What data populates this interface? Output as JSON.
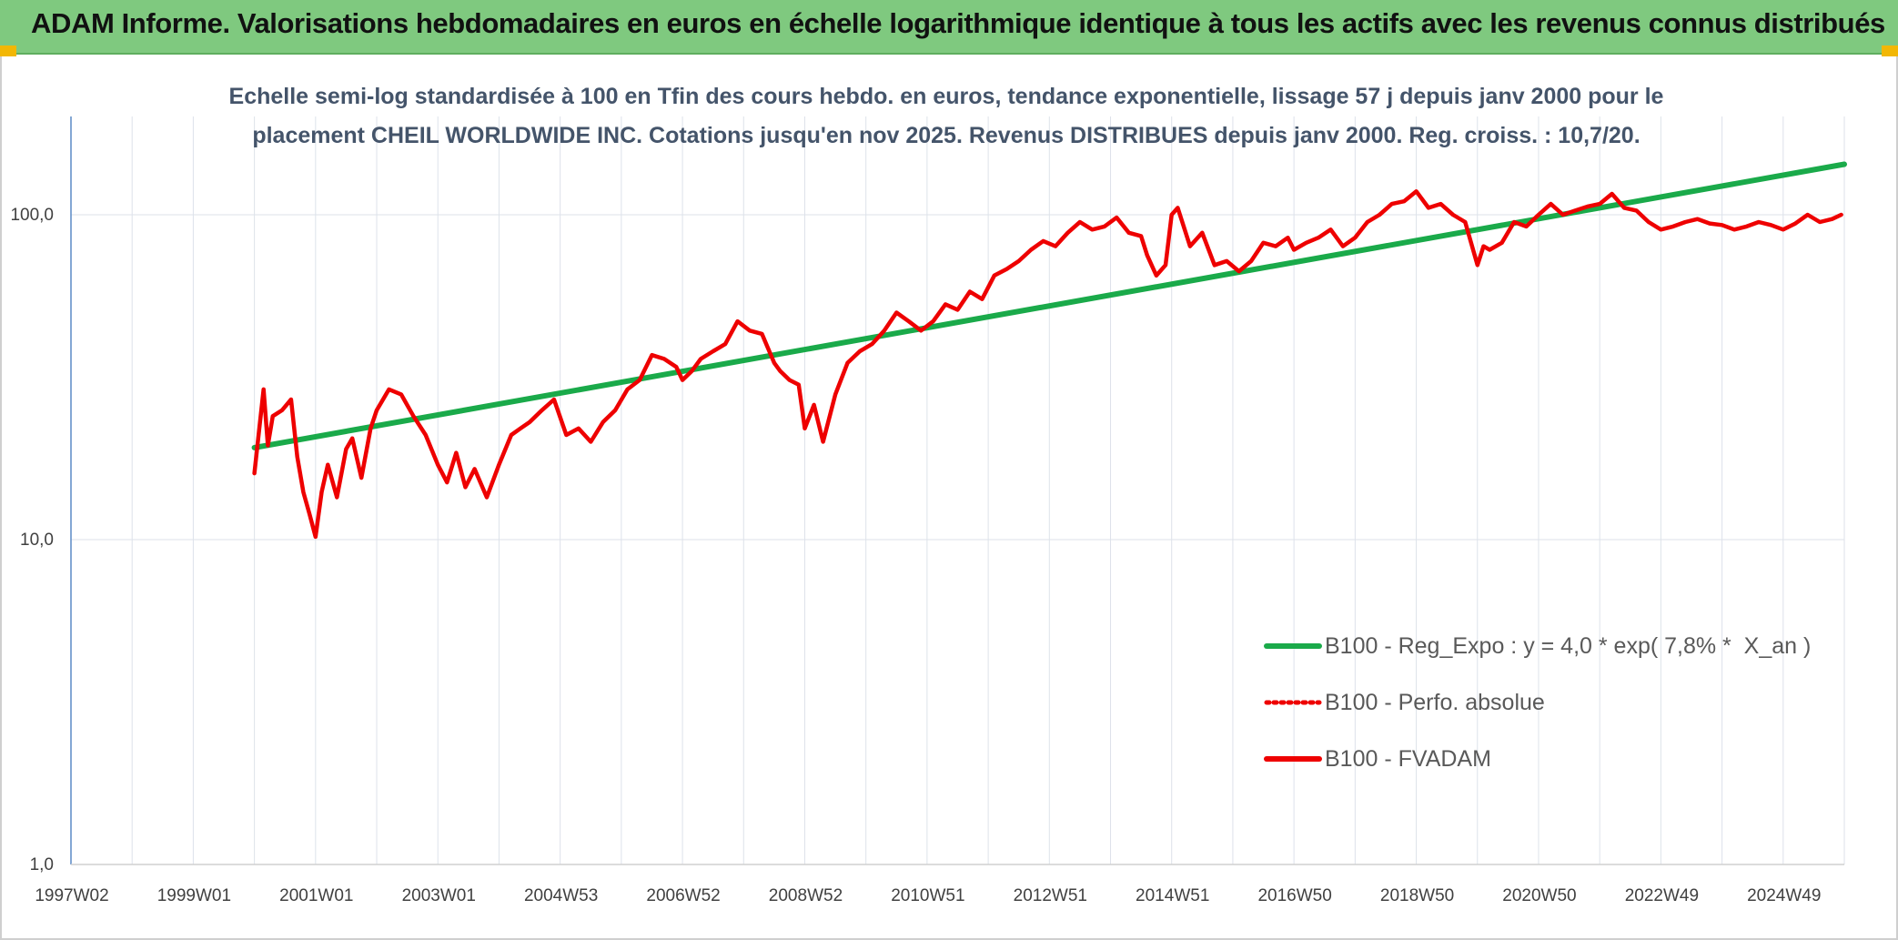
{
  "header": {
    "title": "ADAM Informe. Valorisations hebdomadaires en euros en échelle logarithmique identique à tous les actifs avec les revenus connus distribués"
  },
  "colors": {
    "header_bg": "#7fc97f",
    "regression": "#1aaa4a",
    "fvadam": "#ee0000",
    "corner": "#f2b705"
  },
  "chart_data": {
    "type": "line",
    "title_lines": [
      "Echelle semi-log standardisée à 100 en Tfin des cours hebdo. en euros, tendance exponentielle, lissage 57 j depuis janv 2000 pour le",
      "placement CHEIL WORLDWIDE INC. Cotations jusqu'en nov 2025. Revenus DISTRIBUES depuis janv 2000. Reg. croiss. : 10,7/20."
    ],
    "y_scale": "log",
    "ylim": [
      1,
      200
    ],
    "y_ticks": [
      {
        "value": 1,
        "label": "1,0"
      },
      {
        "value": 10,
        "label": "10,0"
      },
      {
        "value": 100,
        "label": "100,0"
      }
    ],
    "xlim": [
      1997.0,
      2026.0
    ],
    "x_ticks": [
      {
        "value": 1997.0,
        "label": "1997W02"
      },
      {
        "value": 1999.0,
        "label": "1999W01"
      },
      {
        "value": 2001.0,
        "label": "2001W01"
      },
      {
        "value": 2003.0,
        "label": "2003W01"
      },
      {
        "value": 2005.0,
        "label": "2004W53"
      },
      {
        "value": 2007.0,
        "label": "2006W52"
      },
      {
        "value": 2009.0,
        "label": "2008W52"
      },
      {
        "value": 2011.0,
        "label": "2010W51"
      },
      {
        "value": 2013.0,
        "label": "2012W51"
      },
      {
        "value": 2015.0,
        "label": "2014W51"
      },
      {
        "value": 2017.0,
        "label": "2016W50"
      },
      {
        "value": 2019.0,
        "label": "2018W50"
      },
      {
        "value": 2021.0,
        "label": "2020W50"
      },
      {
        "value": 2023.0,
        "label": "2022W49"
      },
      {
        "value": 2025.0,
        "label": "2024W49"
      }
    ],
    "grid": "vertical-yearly-and-horizontal-decades",
    "legend_position": "bottom-right",
    "series": [
      {
        "name": "B100 - Reg_Expo : y = 4,0 * exp( 7,8% *  X_an )",
        "style": "solid",
        "color": "#1aaa4a",
        "x": [
          2000.0,
          2026.0
        ],
        "y": [
          19.2,
          143.0
        ]
      },
      {
        "name": "B100 - Perfo. absolue",
        "style": "dotted",
        "color": "#ee0000",
        "x": [],
        "y": []
      },
      {
        "name": "B100 - FVADAM",
        "style": "solid",
        "color": "#ee0000",
        "x": [
          2000.0,
          2000.08,
          2000.15,
          2000.22,
          2000.3,
          2000.45,
          2000.6,
          2000.7,
          2000.8,
          2000.9,
          2001.0,
          2001.1,
          2001.2,
          2001.35,
          2001.5,
          2001.6,
          2001.75,
          2001.9,
          2002.0,
          2002.2,
          2002.4,
          2002.6,
          2002.8,
          2003.0,
          2003.15,
          2003.3,
          2003.45,
          2003.6,
          2003.8,
          2004.0,
          2004.2,
          2004.35,
          2004.5,
          2004.7,
          2004.9,
          2005.1,
          2005.3,
          2005.5,
          2005.7,
          2005.9,
          2006.1,
          2006.3,
          2006.5,
          2006.7,
          2006.9,
          2007.0,
          2007.15,
          2007.3,
          2007.5,
          2007.7,
          2007.9,
          2008.1,
          2008.3,
          2008.5,
          2008.6,
          2008.75,
          2008.9,
          2009.0,
          2009.15,
          2009.3,
          2009.5,
          2009.7,
          2009.9,
          2010.1,
          2010.3,
          2010.5,
          2010.7,
          2010.9,
          2011.1,
          2011.3,
          2011.5,
          2011.7,
          2011.9,
          2012.1,
          2012.3,
          2012.5,
          2012.7,
          2012.9,
          2013.1,
          2013.3,
          2013.5,
          2013.7,
          2013.9,
          2014.1,
          2014.3,
          2014.5,
          2014.6,
          2014.75,
          2014.9,
          2015.0,
          2015.1,
          2015.3,
          2015.5,
          2015.7,
          2015.9,
          2016.1,
          2016.3,
          2016.5,
          2016.7,
          2016.9,
          2017.0,
          2017.2,
          2017.4,
          2017.6,
          2017.8,
          2018.0,
          2018.2,
          2018.4,
          2018.6,
          2018.8,
          2019.0,
          2019.2,
          2019.4,
          2019.6,
          2019.8,
          2020.0,
          2020.1,
          2020.2,
          2020.4,
          2020.6,
          2020.8,
          2021.0,
          2021.2,
          2021.4,
          2021.6,
          2021.8,
          2022.0,
          2022.2,
          2022.4,
          2022.6,
          2022.8,
          2023.0,
          2023.2,
          2023.4,
          2023.6,
          2023.8,
          2024.0,
          2024.2,
          2024.4,
          2024.6,
          2024.8,
          2025.0,
          2025.2,
          2025.4,
          2025.6,
          2025.8,
          2025.95
        ],
        "y": [
          16.0,
          22.0,
          29.0,
          19.5,
          24.0,
          25.0,
          27.0,
          18.0,
          14.0,
          12.0,
          10.2,
          14.0,
          17.0,
          13.5,
          19.0,
          20.5,
          15.5,
          22.0,
          25.0,
          29.0,
          28.0,
          24.0,
          21.0,
          17.0,
          15.0,
          18.5,
          14.5,
          16.5,
          13.5,
          17.0,
          21.0,
          22.0,
          23.0,
          25.0,
          27.0,
          21.0,
          22.0,
          20.0,
          23.0,
          25.0,
          29.0,
          31.0,
          37.0,
          36.0,
          34.0,
          31.0,
          33.0,
          36.0,
          38.0,
          40.0,
          47.0,
          44.0,
          43.0,
          35.0,
          33.0,
          31.0,
          30.0,
          22.0,
          26.0,
          20.0,
          28.0,
          35.0,
          38.0,
          40.0,
          44.0,
          50.0,
          47.0,
          44.0,
          47.0,
          53.0,
          51.0,
          58.0,
          55.0,
          65.0,
          68.0,
          72.0,
          78.0,
          83.0,
          80.0,
          88.0,
          95.0,
          90.0,
          92.0,
          98.0,
          88.0,
          86.0,
          75.0,
          65.0,
          70.0,
          100.0,
          105.0,
          80.0,
          88.0,
          70.0,
          72.0,
          67.0,
          72.0,
          82.0,
          80.0,
          85.0,
          78.0,
          82.0,
          85.0,
          90.0,
          80.0,
          85.0,
          95.0,
          100.0,
          108.0,
          110.0,
          118.0,
          105.0,
          108.0,
          100.0,
          95.0,
          70.0,
          80.0,
          78.0,
          82.0,
          95.0,
          92.0,
          100.0,
          108.0,
          100.0,
          103.0,
          106.0,
          108.0,
          116.0,
          105.0,
          103.0,
          95.0,
          90.0,
          92.0,
          95.0,
          97.0,
          94.0,
          93.0,
          90.0,
          92.0,
          95.0,
          93.0,
          90.0,
          94.0,
          100.0,
          95.0,
          97.0,
          100.0
        ]
      }
    ]
  }
}
